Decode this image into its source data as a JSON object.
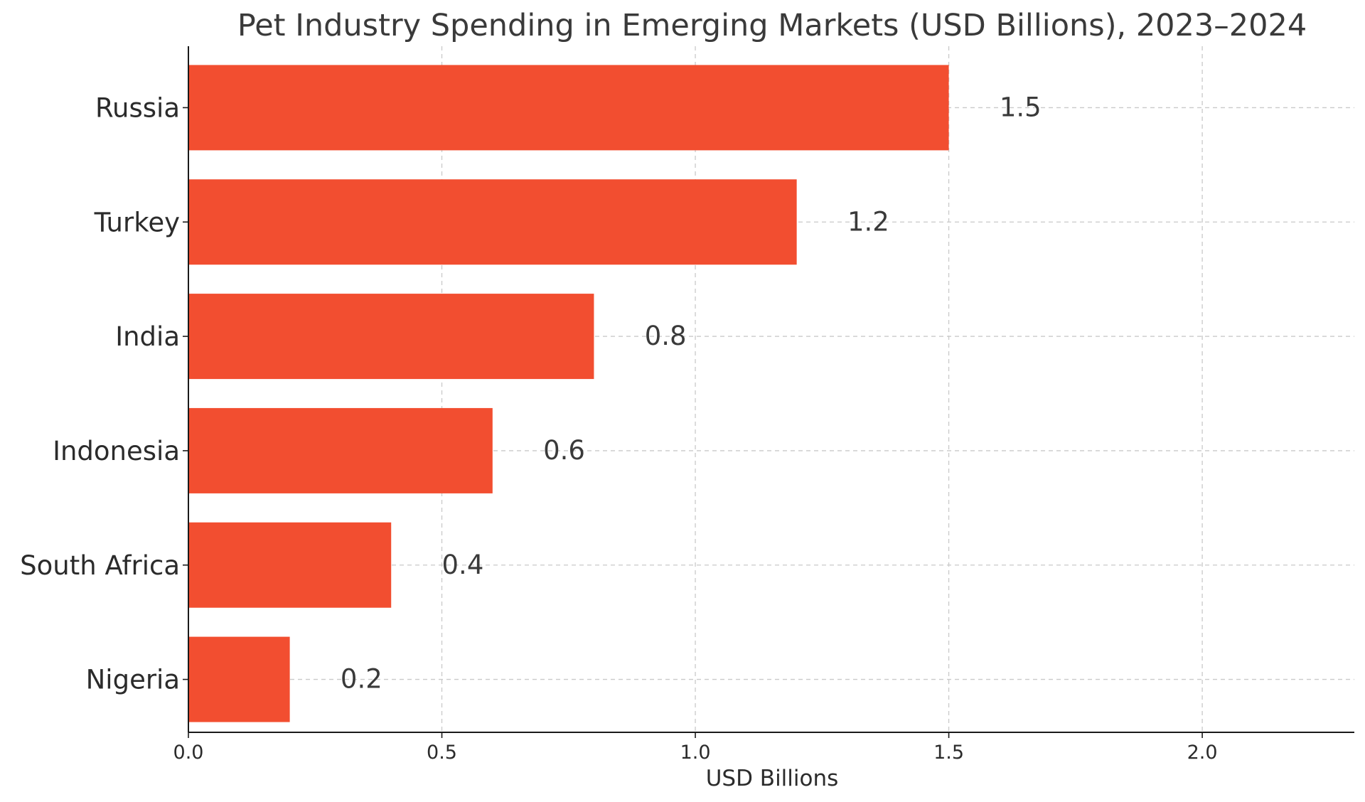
{
  "chart_data": {
    "type": "bar",
    "orientation": "horizontal",
    "title": "Pet Industry Spending in Emerging Markets (USD Billions), 2023–2024",
    "xlabel": "USD Billions",
    "ylabel": "",
    "categories": [
      "Russia",
      "Turkey",
      "India",
      "Indonesia",
      "South Africa",
      "Nigeria"
    ],
    "values": [
      1.5,
      1.2,
      0.8,
      0.6,
      0.4,
      0.2
    ],
    "value_labels": [
      "1.5",
      "1.2",
      "0.8",
      "0.6",
      "0.4",
      "0.2"
    ],
    "xlim": [
      0,
      2.3
    ],
    "xticks": [
      0.0,
      0.5,
      1.0,
      1.5,
      2.0
    ],
    "xtick_labels": [
      "0.0",
      "0.5",
      "1.0",
      "1.5",
      "2.0"
    ],
    "grid": true,
    "bar_color": "#f24e30"
  }
}
